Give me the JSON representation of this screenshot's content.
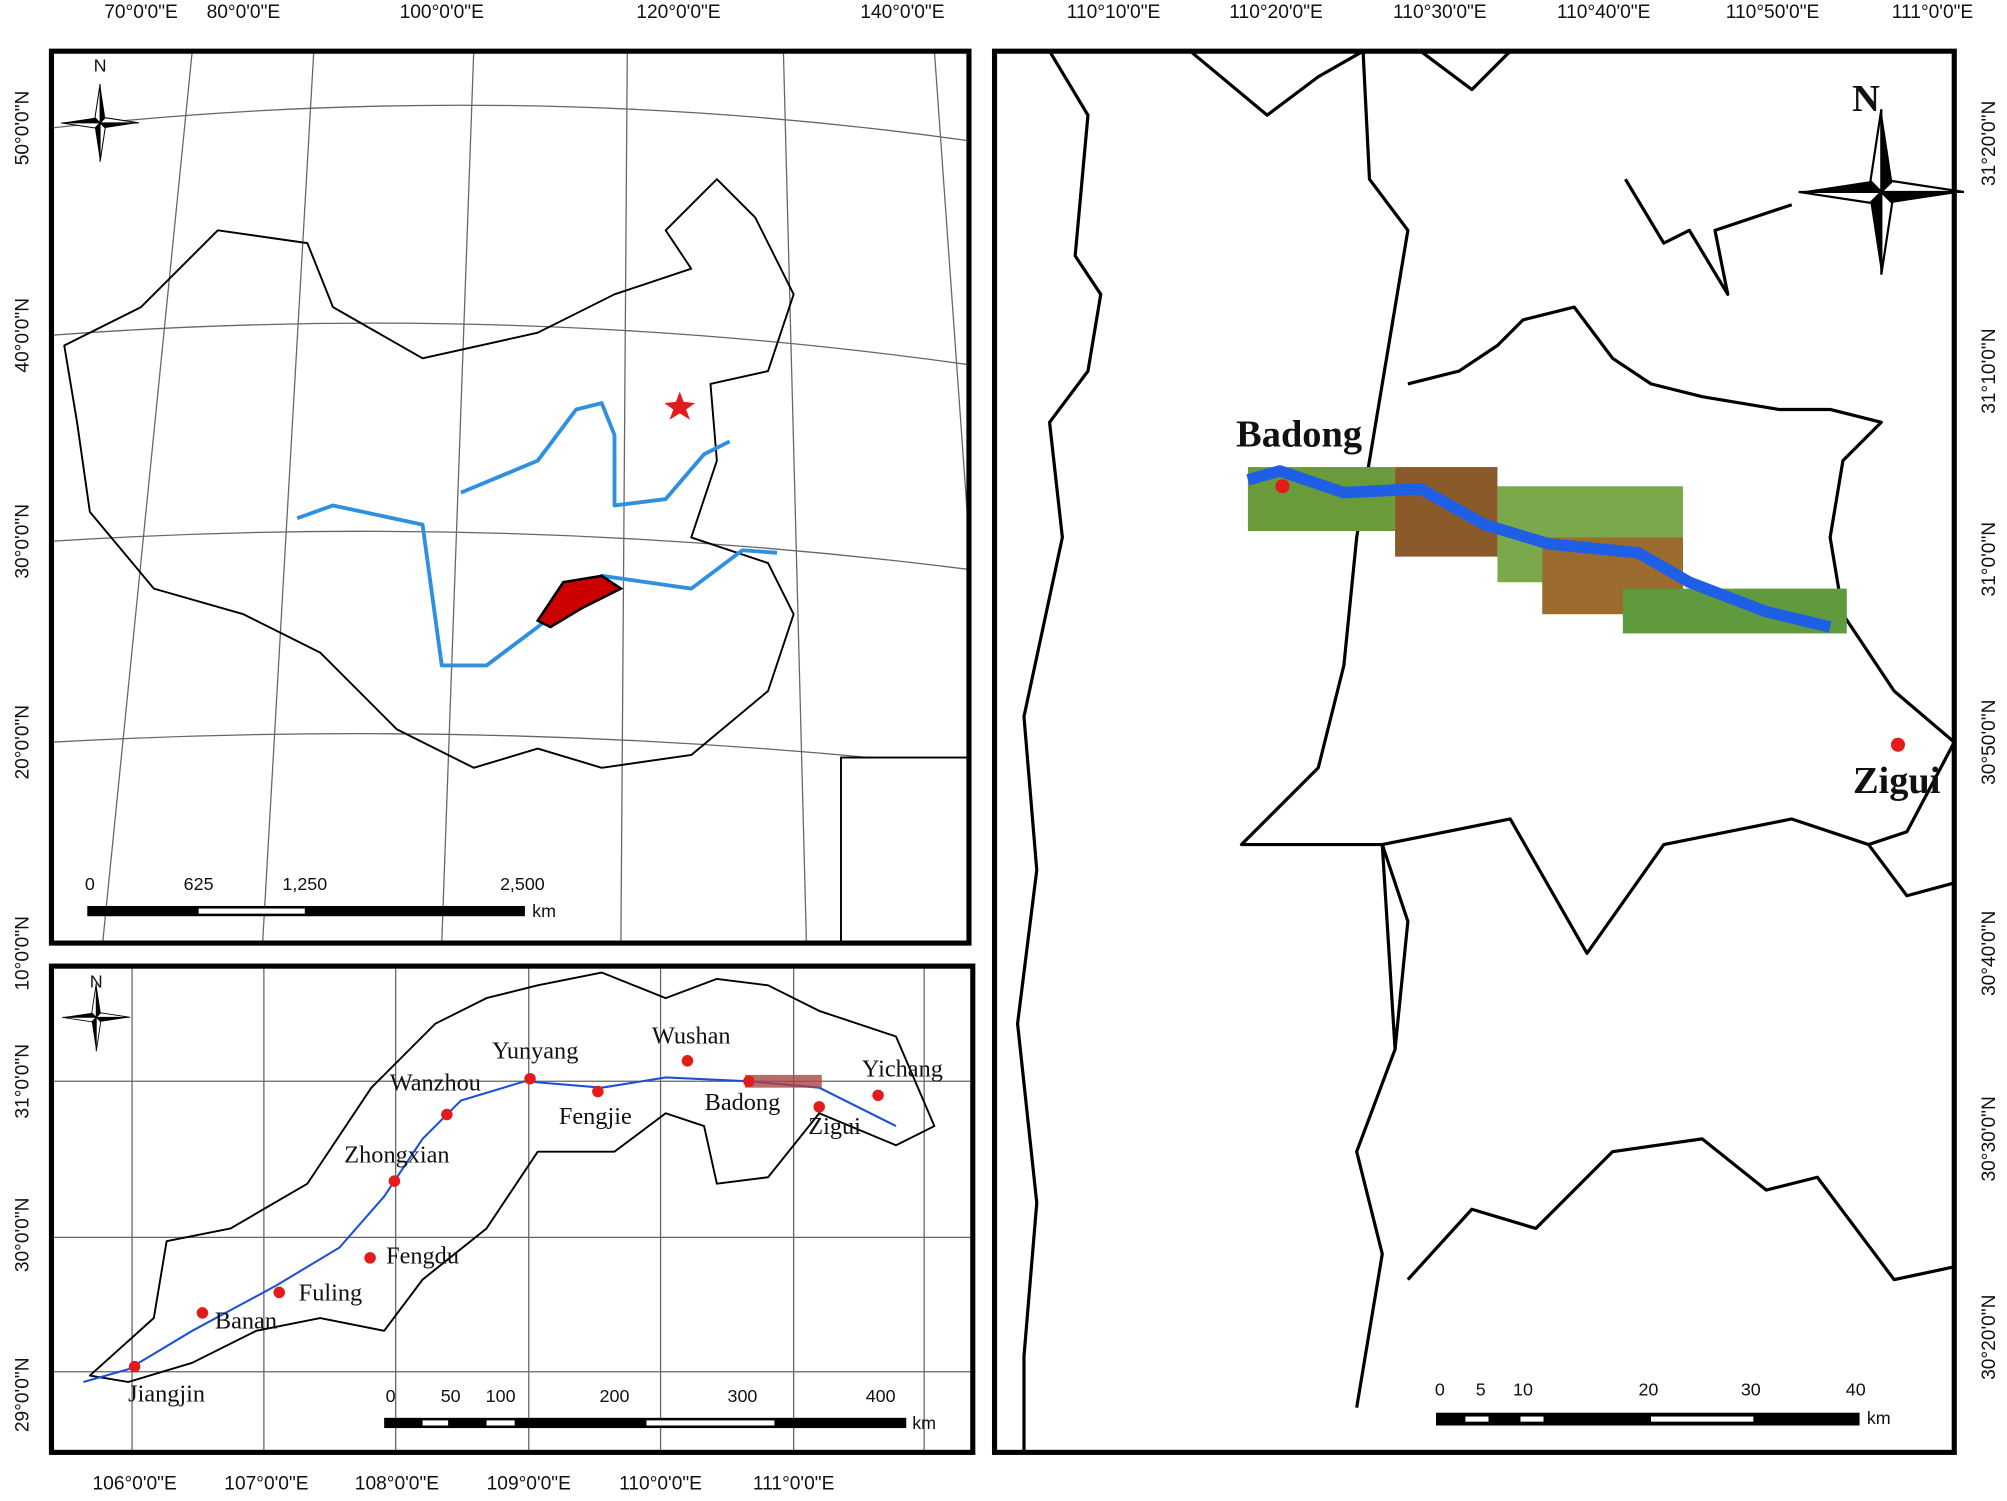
{
  "overview": {
    "north": "N",
    "lon_labels": [
      "70°0'0\"E",
      "80°0'0\"E",
      "100°0'0\"E",
      "120°0'0\"E",
      "140°0'0\"E"
    ],
    "lat_labels": [
      "50°0'0\"N",
      "40°0'0\"N",
      "30°0'0\"N",
      "20°0'0\"N",
      "10°0'0\"N"
    ],
    "scale_labels": [
      "0",
      "625",
      "1,250",
      "2,500"
    ],
    "scale_unit": "km"
  },
  "reservoir": {
    "north": "N",
    "lon_labels": [
      "106°0'0\"E",
      "107°0'0\"E",
      "108°0'0\"E",
      "109°0'0\"E",
      "110°0'0\"E",
      "111°0'0\"E"
    ],
    "lat_labels": [
      "31°0'0\"N",
      "30°0'0\"N",
      "29°0'0\"N"
    ],
    "cities": [
      "Jiangjin",
      "Banan",
      "Fuling",
      "Fengdu",
      "Zhongxian",
      "Wanzhou",
      "Yunyang",
      "Fengjie",
      "Wushan",
      "Badong",
      "Zigui",
      "Yichang"
    ],
    "scale_labels": [
      "0",
      "50",
      "100",
      "200",
      "300",
      "400"
    ],
    "scale_unit": "km"
  },
  "detail": {
    "north": "N",
    "lon_labels": [
      "110°10'0\"E",
      "110°20'0\"E",
      "110°30'0\"E",
      "110°40'0\"E",
      "110°50'0\"E",
      "111°0'0\"E"
    ],
    "lat_labels": [
      "31°20'0\"N",
      "31°10'0\"N",
      "31°0'0\"N",
      "30°50'0\"N",
      "30°40'0\"N",
      "30°30'0\"N",
      "30°20'0\"N"
    ],
    "towns": [
      "Badong",
      "Zigui"
    ],
    "scale_labels": [
      "0",
      "5",
      "10",
      "20",
      "30",
      "40"
    ],
    "scale_unit": "km"
  }
}
